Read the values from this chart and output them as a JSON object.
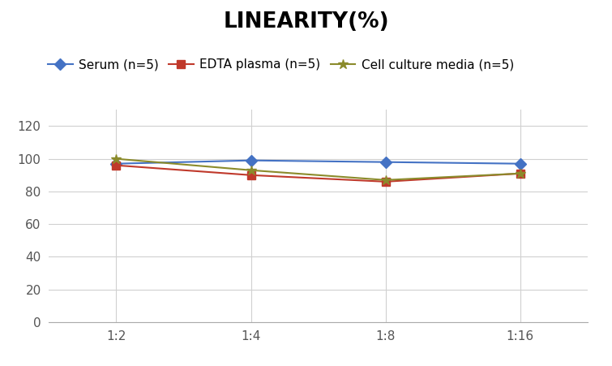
{
  "title": "LINEARITY(%)",
  "title_fontsize": 19,
  "title_fontweight": "bold",
  "x_labels": [
    "1:2",
    "1:4",
    "1:8",
    "1:16"
  ],
  "x_positions": [
    0,
    1,
    2,
    3
  ],
  "series": [
    {
      "label": "Serum (n=5)",
      "color": "#4472C4",
      "marker": "D",
      "markersize": 7,
      "values": [
        97,
        99,
        98,
        97
      ]
    },
    {
      "label": "EDTA plasma (n=5)",
      "color": "#C0392B",
      "marker": "s",
      "markersize": 7,
      "values": [
        96,
        90,
        86,
        91
      ]
    },
    {
      "label": "Cell culture media (n=5)",
      "color": "#8B8B2B",
      "marker": "*",
      "markersize": 9,
      "values": [
        100,
        93,
        87,
        91
      ]
    }
  ],
  "ylim": [
    0,
    130
  ],
  "yticks": [
    0,
    20,
    40,
    60,
    80,
    100,
    120
  ],
  "background_color": "#ffffff",
  "grid_color": "#d0d0d0",
  "legend_fontsize": 11,
  "axis_fontsize": 12,
  "tick_fontsize": 11
}
